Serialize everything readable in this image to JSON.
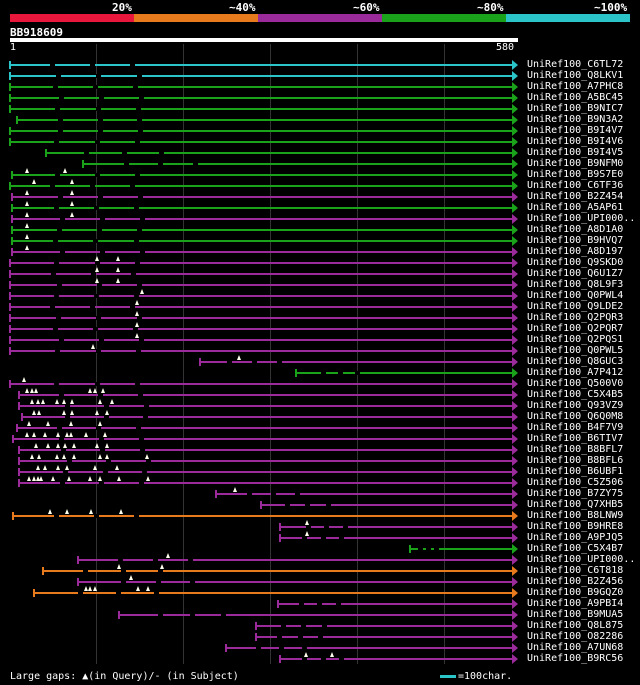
{
  "scale": {
    "ticks": [
      "20%",
      "~40%",
      "~60%",
      "~80%",
      "~100%"
    ],
    "colors": [
      "#e8173b",
      "#e87a1e",
      "#9b2b9b",
      "#1aa31a",
      "#2bc4c8"
    ]
  },
  "query_id": "BB918609",
  "ruler": {
    "start": "1",
    "end": "580"
  },
  "colors": {
    "c100": "#2bc4c8",
    "c80": "#1aa31a",
    "c60": "#9b2b9b",
    "c40": "#e87a1e",
    "c20": "#e8173b"
  },
  "hits": [
    {
      "id": "UniRef100_C6TL72",
      "s": 0,
      "e": 580,
      "c": "c100",
      "t": []
    },
    {
      "id": "UniRef100_Q8LKV1",
      "s": 0,
      "e": 580,
      "c": "c100",
      "t": []
    },
    {
      "id": "UniRef100_A7PHC8",
      "s": 0,
      "e": 580,
      "c": "c80",
      "t": []
    },
    {
      "id": "UniRef100_A5BC45",
      "s": 0,
      "e": 580,
      "c": "c80",
      "t": []
    },
    {
      "id": "UniRef100_B9NIC7",
      "s": 0,
      "e": 580,
      "c": "c80",
      "t": []
    },
    {
      "id": "UniRef100_B9N3A2",
      "s": 8,
      "e": 580,
      "c": "c80",
      "t": []
    },
    {
      "id": "UniRef100_B9I4V7",
      "s": 0,
      "e": 580,
      "c": "c80",
      "t": []
    },
    {
      "id": "UniRef100_B9I4V6",
      "s": 0,
      "e": 580,
      "c": "c80",
      "t": []
    },
    {
      "id": "UniRef100_B9I4V5",
      "s": 42,
      "e": 580,
      "c": "c80",
      "t": []
    },
    {
      "id": "UniRef100_B9NFM0",
      "s": 84,
      "e": 580,
      "c": "c80",
      "t": []
    },
    {
      "id": "UniRef100_B9S7E0",
      "s": 2,
      "e": 580,
      "c": "c80",
      "t": [
        20,
        64
      ]
    },
    {
      "id": "UniRef100_C6TF36",
      "s": 0,
      "e": 580,
      "c": "c80",
      "t": [
        28,
        72
      ]
    },
    {
      "id": "UniRef100_B2Z454",
      "s": 2,
      "e": 580,
      "c": "c60",
      "t": [
        20,
        72
      ]
    },
    {
      "id": "UniRef100_A5AP61",
      "s": 2,
      "e": 580,
      "c": "c80",
      "t": [
        20,
        72
      ]
    },
    {
      "id": "UniRef100_UPI000..",
      "s": 2,
      "e": 580,
      "c": "c60",
      "t": [
        20,
        72
      ]
    },
    {
      "id": "UniRef100_A8D1A0",
      "s": 2,
      "e": 580,
      "c": "c80",
      "t": [
        20
      ]
    },
    {
      "id": "UniRef100_B9HVQ7",
      "s": 2,
      "e": 580,
      "c": "c80",
      "t": [
        20
      ]
    },
    {
      "id": "UniRef100_A8D197",
      "s": 2,
      "e": 580,
      "c": "c60",
      "t": [
        20
      ]
    },
    {
      "id": "UniRef100_Q9SKD0",
      "s": 0,
      "e": 580,
      "c": "c60",
      "t": [
        100,
        125
      ]
    },
    {
      "id": "UniRef100_Q6U1Z7",
      "s": 0,
      "e": 580,
      "c": "c60",
      "t": [
        100,
        125
      ]
    },
    {
      "id": "UniRef100_Q8L9F3",
      "s": 0,
      "e": 580,
      "c": "c60",
      "t": [
        100,
        125
      ]
    },
    {
      "id": "UniRef100_Q0PWL4",
      "s": 0,
      "e": 580,
      "c": "c60",
      "t": [
        153
      ]
    },
    {
      "id": "UniRef100_Q9LDE2",
      "s": 0,
      "e": 580,
      "c": "c60",
      "t": [
        147
      ]
    },
    {
      "id": "UniRef100_Q2PQR3",
      "s": 0,
      "e": 580,
      "c": "c60",
      "t": [
        147
      ]
    },
    {
      "id": "UniRef100_Q2PQR7",
      "s": 0,
      "e": 580,
      "c": "c60",
      "t": [
        147
      ]
    },
    {
      "id": "UniRef100_Q2PQS1",
      "s": 0,
      "e": 580,
      "c": "c60",
      "t": [
        147
      ]
    },
    {
      "id": "UniRef100_Q0PWL5",
      "s": 0,
      "e": 580,
      "c": "c60",
      "t": [
        96
      ]
    },
    {
      "id": "UniRef100_Q8GUC3",
      "s": 220,
      "e": 580,
      "c": "c60",
      "t": [
        265
      ]
    },
    {
      "id": "UniRef100_A7P412",
      "s": 330,
      "e": 580,
      "c": "c80",
      "t": []
    },
    {
      "id": "UniRef100_Q500V0",
      "s": 0,
      "e": 580,
      "c": "c60",
      "t": [
        16
      ]
    },
    {
      "id": "UniRef100_C5X4B5",
      "s": 10,
      "e": 580,
      "c": "c60",
      "t": [
        20,
        26,
        30,
        92,
        98,
        108
      ]
    },
    {
      "id": "UniRef100_Q93VZ9",
      "s": 10,
      "e": 580,
      "c": "c60",
      "t": [
        26,
        32,
        38,
        54,
        62,
        72,
        104,
        118
      ]
    },
    {
      "id": "UniRef100_Q6Q0M8",
      "s": 14,
      "e": 580,
      "c": "c60",
      "t": [
        28,
        34,
        62,
        72,
        100,
        112
      ]
    },
    {
      "id": "UniRef100_B4F7V9",
      "s": 8,
      "e": 580,
      "c": "c60",
      "t": [
        22,
        44,
        70,
        104
      ]
    },
    {
      "id": "UniRef100_B6TIV7",
      "s": 4,
      "e": 580,
      "c": "c60",
      "t": [
        20,
        28,
        40,
        56,
        66,
        70,
        88,
        110
      ]
    },
    {
      "id": "UniRef100_B8BFL7",
      "s": 10,
      "e": 580,
      "c": "c60",
      "t": [
        30,
        44,
        56,
        64,
        74,
        100,
        112
      ]
    },
    {
      "id": "UniRef100_B8BFL6",
      "s": 10,
      "e": 580,
      "c": "c60",
      "t": [
        26,
        34,
        54,
        62,
        74,
        104,
        112,
        158
      ]
    },
    {
      "id": "UniRef100_B6UBF1",
      "s": 10,
      "e": 580,
      "c": "c60",
      "t": [
        32,
        40,
        56,
        66,
        98,
        124
      ]
    },
    {
      "id": "UniRef100_C5Z506",
      "s": 10,
      "e": 580,
      "c": "c60",
      "t": [
        22,
        28,
        32,
        36,
        50,
        68,
        92,
        104,
        126,
        160
      ]
    },
    {
      "id": "UniRef100_B7ZY75",
      "s": 238,
      "e": 580,
      "c": "c60",
      "t": [
        260
      ]
    },
    {
      "id": "UniRef100_Q7XHB5",
      "s": 290,
      "e": 580,
      "c": "c60",
      "t": []
    },
    {
      "id": "UniRef100_B8LNW9",
      "s": 4,
      "e": 580,
      "c": "c40",
      "t": [
        46,
        66,
        94,
        128
      ]
    },
    {
      "id": "UniRef100_B9HRE8",
      "s": 312,
      "e": 580,
      "c": "c60",
      "t": [
        343
      ]
    },
    {
      "id": "UniRef100_A9PJQ5",
      "s": 312,
      "e": 580,
      "c": "c60",
      "t": [
        343
      ]
    },
    {
      "id": "UniRef100_C5X4B7",
      "s": 462,
      "e": 580,
      "c": "c80",
      "t": []
    },
    {
      "id": "UniRef100_UPI000..",
      "s": 78,
      "e": 580,
      "c": "c60",
      "t": [
        182
      ]
    },
    {
      "id": "UniRef100_C6T818",
      "s": 38,
      "e": 580,
      "c": "c40",
      "t": [
        126,
        176
      ]
    },
    {
      "id": "UniRef100_B2Z456",
      "s": 78,
      "e": 580,
      "c": "c60",
      "t": [
        140
      ]
    },
    {
      "id": "UniRef100_B9GQZ0",
      "s": 28,
      "e": 580,
      "c": "c40",
      "t": [
        88,
        92,
        98,
        148,
        160
      ]
    },
    {
      "id": "UniRef100_A9PBI4",
      "s": 310,
      "e": 580,
      "c": "c60",
      "t": []
    },
    {
      "id": "UniRef100_B9MUA5",
      "s": 126,
      "e": 580,
      "c": "c60",
      "t": []
    },
    {
      "id": "UniRef100_Q8L875",
      "s": 284,
      "e": 580,
      "c": "c60",
      "t": []
    },
    {
      "id": "UniRef100_O82286",
      "s": 284,
      "e": 580,
      "c": "c60",
      "t": []
    },
    {
      "id": "UniRef100_A7UN68",
      "s": 250,
      "e": 580,
      "c": "c60",
      "t": []
    },
    {
      "id": "UniRef100_B9RC56",
      "s": 312,
      "e": 580,
      "c": "c60",
      "t": [
        342,
        372
      ]
    }
  ],
  "legend": {
    "left": "Large gaps: ▲(in Query)/- (in Subject)",
    "right": "=100char."
  }
}
